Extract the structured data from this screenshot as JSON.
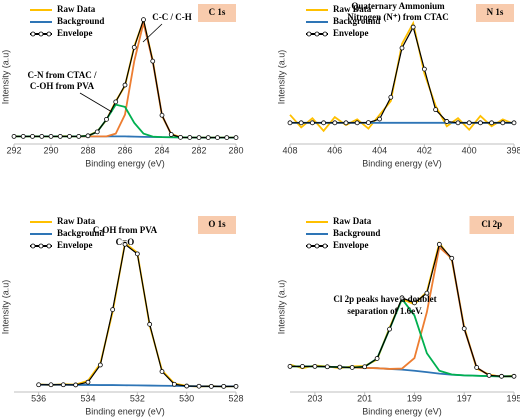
{
  "chart_data": [
    {
      "type": "line",
      "title": "C 1s",
      "xlabel": "Binding energy (eV)",
      "ylabel": "Intensity (a.u)",
      "legend": "upper left",
      "xlim": [
        292,
        280
      ],
      "xticks": [
        292,
        290,
        288,
        286,
        284,
        282,
        280
      ],
      "ylim": [
        0,
        105
      ],
      "x": [
        292,
        291.5,
        291,
        290.5,
        290,
        289.5,
        289,
        288.5,
        288,
        287.5,
        287,
        286.5,
        286,
        285.5,
        285,
        284.5,
        284,
        283.5,
        283,
        282.5,
        282,
        281.5,
        281,
        280.5,
        280
      ],
      "series": [
        {
          "name": "Raw Data",
          "color": "#ffc000",
          "values": [
            3.2,
            2.9,
            3.1,
            3,
            2.8,
            3.2,
            3.1,
            2.9,
            3.6,
            7.1,
            16.8,
            32.3,
            45.1,
            78,
            99.5,
            66.4,
            20.1,
            4.9,
            2.4,
            2,
            2.1,
            1.9,
            2.1,
            2,
            2
          ]
        },
        {
          "name": "Background",
          "color": "#2e75b6",
          "values": [
            3,
            3,
            3,
            3,
            3,
            3,
            3,
            3,
            3,
            3,
            3,
            3,
            3,
            2.8,
            2.6,
            2.5,
            2.4,
            2.3,
            2.2,
            2.1,
            2,
            2,
            2,
            2,
            2
          ]
        },
        {
          "color": "#ed7d31",
          "values": [
            3,
            3,
            3,
            3,
            3,
            3,
            3,
            3,
            3,
            3,
            3,
            5.3,
            21.2,
            65.7,
            97.6,
            65.4,
            20.6,
            4.6,
            2.2,
            2.1,
            2,
            2,
            2,
            2,
            2
          ]
        },
        {
          "color": "#00b050",
          "values": [
            3,
            3,
            3,
            3,
            3,
            3,
            3,
            3,
            3.5,
            6.8,
            17.2,
            29.5,
            27.6,
            14.3,
            5.3,
            2.8,
            2.4,
            2.3,
            2.2,
            2.1,
            2,
            2,
            2,
            2,
            2
          ]
        },
        {
          "name": "Envelope",
          "color": "#000000",
          "markers": true,
          "values": [
            3,
            3,
            3,
            3,
            3,
            3,
            3,
            3,
            3.5,
            6.8,
            17.2,
            31.8,
            45.8,
            77.2,
            100.3,
            65.7,
            20.6,
            4.6,
            2.2,
            2.1,
            2,
            2,
            2,
            2,
            2
          ]
        }
      ],
      "annotations": [
        "C-N from CTAC /",
        "C-OH from PVA",
        "C-C / C-H"
      ]
    },
    {
      "type": "line",
      "title": "N 1s",
      "xlabel": "Binding energy (eV)",
      "ylabel": "Intensity (a.u)",
      "legend": "upper left",
      "xlim": [
        408,
        398
      ],
      "xticks": [
        408,
        406,
        404,
        402,
        400,
        398
      ],
      "ylim": [
        -10,
        100
      ],
      "x": [
        408,
        407.5,
        407,
        406.5,
        406,
        405.5,
        405,
        404.5,
        404,
        403.5,
        403,
        402.5,
        402,
        401.5,
        401,
        400.5,
        400,
        399.5,
        399,
        398.5,
        398
      ],
      "series": [
        {
          "name": "Raw Data",
          "color": "#ffc000",
          "values": [
            12,
            1,
            9,
            -2,
            10,
            3,
            8,
            0,
            12,
            24,
            74,
            92,
            48,
            20,
            2,
            9,
            -1,
            11,
            2,
            8,
            4
          ]
        },
        {
          "name": "Background",
          "color": "#2e75b6",
          "values": [
            5,
            5,
            5,
            5,
            5,
            5,
            5,
            5,
            5,
            5,
            5,
            5,
            5,
            5,
            5,
            5,
            5,
            5,
            5,
            5,
            5
          ]
        },
        {
          "name": "Envelope",
          "color": "#000000",
          "markers": true,
          "values": [
            5,
            5,
            5,
            5,
            5,
            5,
            5,
            5.2,
            8.3,
            27.3,
            70.3,
            88.6,
            51.9,
            16.5,
            6.2,
            5,
            5,
            5,
            5,
            5,
            5
          ]
        }
      ],
      "annotations": [
        "Quaternary Ammonium",
        "Nitrogen (N⁺) from CTAC"
      ]
    },
    {
      "type": "line",
      "title": "O 1s",
      "xlabel": "Binding energy (eV)",
      "ylabel": "Intensity (a.u)",
      "legend": "upper left",
      "xlim": [
        537,
        528
      ],
      "xticks": [
        536,
        534,
        532,
        530,
        528
      ],
      "ylim": [
        0,
        100
      ],
      "x": [
        536,
        535.5,
        535,
        534.5,
        534,
        533.5,
        533,
        532.5,
        532,
        531.5,
        531,
        530.5,
        530,
        529.5,
        529,
        528.5,
        528
      ],
      "series": [
        {
          "name": "Raw Data",
          "color": "#ffc000",
          "values": [
            2.3,
            1.8,
            2.4,
            2.1,
            4.5,
            15,
            47,
            89.5,
            83.5,
            38.6,
            10.9,
            2.8,
            1.3,
            0.9,
            1.2,
            0.8,
            1
          ]
        },
        {
          "name": "Background",
          "color": "#2e75b6",
          "values": [
            2,
            2,
            2,
            1.9,
            1.9,
            1.8,
            1.8,
            1.7,
            1.6,
            1.5,
            1.4,
            1.3,
            1.2,
            1.1,
            1,
            1,
            1
          ]
        },
        {
          "name": "Envelope",
          "color": "#000000",
          "markers": true,
          "values": [
            2,
            2,
            2,
            1.9,
            3.6,
            14.2,
            48.4,
            88.7,
            82.8,
            39.3,
            10.2,
            2.3,
            1.2,
            1.1,
            1,
            1,
            1
          ]
        }
      ],
      "annotations": [
        "C-OH from PVA",
        "C=O"
      ]
    },
    {
      "type": "line",
      "title": "Cl 2p",
      "xlabel": "Binding energy (eV)",
      "ylabel": "Intensity (a.u)",
      "legend": "upper left",
      "xlim": [
        204,
        195
      ],
      "xticks": [
        203,
        201,
        199,
        197,
        195
      ],
      "ylim": [
        0,
        90
      ],
      "x": [
        204,
        203.5,
        203,
        202.5,
        202,
        201.5,
        201,
        200.5,
        200,
        199.5,
        199,
        198.5,
        198,
        197.5,
        197,
        196.5,
        196,
        195.5,
        195
      ],
      "series": [
        {
          "name": "Raw Data",
          "color": "#ffc000",
          "values": [
            13,
            11,
            12.5,
            12,
            11,
            12,
            12.2,
            15.8,
            33.5,
            49.4,
            46.5,
            53.5,
            80.5,
            71.2,
            33.8,
            10.8,
            7.5,
            6.2,
            6.9
          ]
        },
        {
          "name": "Background",
          "color": "#2e75b6",
          "values": [
            12,
            12,
            12,
            11.8,
            11.6,
            11.4,
            11.2,
            11,
            10.6,
            10.2,
            9.6,
            8.8,
            8,
            7.4,
            7,
            6.8,
            6.6,
            6.5,
            6.5
          ]
        },
        {
          "color": "#ed7d31",
          "values": [
            12,
            12,
            12,
            11.8,
            11.6,
            11.4,
            11.2,
            11,
            10.6,
            10.8,
            16.6,
            42.2,
            78.2,
            72,
            33,
            11.4,
            7,
            6.5,
            6.5
          ]
        },
        {
          "color": "#00b050",
          "values": [
            12,
            12,
            12,
            11.8,
            11.6,
            11.4,
            11.8,
            16.4,
            32.7,
            49.5,
            40.3,
            19.3,
            9.6,
            7.5,
            7,
            6.8,
            6.6,
            6.5,
            6.5
          ]
        },
        {
          "name": "Envelope",
          "color": "#000000",
          "markers": true,
          "values": [
            12,
            12,
            12,
            11.8,
            11.6,
            11.4,
            11.8,
            16.4,
            32.7,
            50.1,
            47.3,
            52.7,
            79.8,
            72.1,
            33,
            11.4,
            7,
            6.5,
            6.5
          ]
        }
      ],
      "annotations": [
        "Cl 2p peaks have a doublet",
        "separation of 1.6eV."
      ]
    }
  ]
}
